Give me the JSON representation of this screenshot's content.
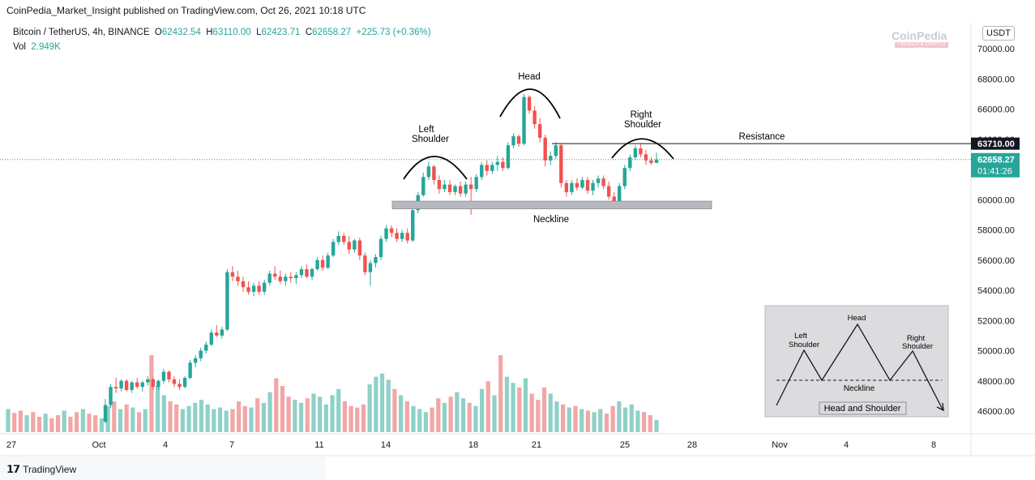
{
  "header": {
    "published": "CoinPedia_Market_Insight published on TradingView.com, Oct 26, 2021 10:18 UTC"
  },
  "symbol": {
    "name": "Bitcoin / TetherUS, 4h, BINANCE",
    "open_label": "O",
    "open": "62432.54",
    "high_label": "H",
    "high": "63110.00",
    "low_label": "L",
    "low": "62423.71",
    "close_label": "C",
    "close": "62658.27",
    "change": "+225.73 (+0.36%)"
  },
  "volume": {
    "label": "Vol",
    "value": "2.949K"
  },
  "currency_button": "USDT",
  "watermark": {
    "name": "CoinPedia",
    "tagline": "FINTECH & CRYPTO MEDIA"
  },
  "footer": {
    "brand": "TradingView"
  },
  "colors": {
    "up": "#26a69a",
    "down": "#ef5350",
    "vol_up": "#8fd1c8",
    "vol_down": "#f2a6a6",
    "dark": "#131722"
  },
  "chart_data": {
    "type": "candlestick",
    "y_axis": {
      "min": 45000,
      "max": 71000,
      "ticks": [
        "70000.00",
        "68000.00",
        "66000.00",
        "64000.00",
        "62000.00",
        "60000.00",
        "58000.00",
        "56000.00",
        "54000.00",
        "52000.00",
        "50000.00",
        "48000.00",
        "46000.00"
      ]
    },
    "x_axis": {
      "ticks": [
        "27",
        "Oct",
        "4",
        "7",
        "11",
        "14",
        "18",
        "21",
        "25",
        "28",
        "Nov",
        "4",
        "8"
      ]
    },
    "price_labels": {
      "resistance": "63710.00",
      "last": "62658.27",
      "countdown": "01:41:26"
    },
    "annotations": {
      "head": "Head",
      "left_shoulder": [
        "Left",
        "Shoulder"
      ],
      "right_shoulder": [
        "Right",
        "Shoulder"
      ],
      "resistance": "Resistance",
      "neckline": "Neckline"
    },
    "inset": {
      "head": "Head",
      "left_shoulder": [
        "Left",
        "Shoulder"
      ],
      "right_shoulder": [
        "Right",
        "Shoulder"
      ],
      "neckline": "Neckline",
      "caption": "Head and Shoulder"
    },
    "resistance_price": 63710,
    "neckline_band": [
      59500,
      59900
    ],
    "candles": [
      [
        45300,
        46800,
        45200,
        46400
      ],
      [
        46400,
        47800,
        46200,
        47600
      ],
      [
        47600,
        48200,
        47200,
        47500
      ],
      [
        47500,
        48100,
        47300,
        48000
      ],
      [
        48000,
        48100,
        47300,
        47400
      ],
      [
        47400,
        48000,
        47200,
        47900
      ],
      [
        47900,
        48200,
        47500,
        47600
      ],
      [
        47600,
        48000,
        47300,
        47900
      ],
      [
        47900,
        48300,
        47700,
        48100
      ],
      [
        48100,
        48200,
        47400,
        47600
      ],
      [
        47600,
        48100,
        47400,
        48000
      ],
      [
        48000,
        48800,
        47800,
        48600
      ],
      [
        48600,
        48700,
        47900,
        48100
      ],
      [
        48100,
        48300,
        47600,
        47800
      ],
      [
        47800,
        48100,
        47400,
        47600
      ],
      [
        47600,
        48300,
        47500,
        48200
      ],
      [
        48200,
        49400,
        48100,
        49200
      ],
      [
        49200,
        49700,
        48900,
        49500
      ],
      [
        49500,
        50200,
        49300,
        50000
      ],
      [
        50000,
        50600,
        49800,
        50400
      ],
      [
        50400,
        51400,
        50300,
        51200
      ],
      [
        51200,
        51700,
        50900,
        51000
      ],
      [
        51000,
        51600,
        50800,
        51400
      ],
      [
        51400,
        55400,
        51300,
        55200
      ],
      [
        55200,
        55600,
        54600,
        54900
      ],
      [
        54900,
        55300,
        54300,
        54600
      ],
      [
        54600,
        54900,
        53900,
        54200
      ],
      [
        54200,
        54600,
        53700,
        53900
      ],
      [
        53900,
        54500,
        53600,
        54300
      ],
      [
        54300,
        54600,
        53700,
        53900
      ],
      [
        53900,
        54700,
        53700,
        54500
      ],
      [
        54500,
        55300,
        54300,
        55100
      ],
      [
        55100,
        55600,
        54700,
        54900
      ],
      [
        54900,
        55300,
        54400,
        54600
      ],
      [
        54600,
        55100,
        54300,
        54900
      ],
      [
        54900,
        55200,
        54500,
        54800
      ],
      [
        54800,
        55200,
        54400,
        55000
      ],
      [
        55000,
        55600,
        54800,
        55400
      ],
      [
        55400,
        55700,
        54800,
        54900
      ],
      [
        54900,
        55500,
        54700,
        55400
      ],
      [
        55400,
        56200,
        55300,
        56000
      ],
      [
        56000,
        56300,
        55300,
        55500
      ],
      [
        55500,
        56500,
        55400,
        56300
      ],
      [
        56300,
        57400,
        56200,
        57200
      ],
      [
        57200,
        57900,
        57000,
        57600
      ],
      [
        57600,
        57800,
        57000,
        57200
      ],
      [
        57200,
        57600,
        56400,
        56700
      ],
      [
        56700,
        57400,
        56500,
        57300
      ],
      [
        57300,
        57500,
        56000,
        56300
      ],
      [
        56300,
        56500,
        55000,
        55200
      ],
      [
        55200,
        56000,
        54300,
        55800
      ],
      [
        55800,
        56400,
        55500,
        56200
      ],
      [
        56200,
        57600,
        56000,
        57400
      ],
      [
        57400,
        58300,
        57200,
        58100
      ],
      [
        58100,
        58300,
        57500,
        57800
      ],
      [
        57800,
        58100,
        57200,
        57400
      ],
      [
        57400,
        58000,
        57200,
        57800
      ],
      [
        57800,
        58100,
        57100,
        57300
      ],
      [
        57300,
        59600,
        57200,
        59300
      ],
      [
        59300,
        60500,
        59100,
        60300
      ],
      [
        60300,
        61800,
        60200,
        61500
      ],
      [
        61500,
        62500,
        61300,
        62200
      ],
      [
        62200,
        62300,
        61000,
        61300
      ],
      [
        61300,
        61600,
        60400,
        60700
      ],
      [
        60700,
        61300,
        60500,
        61000
      ],
      [
        61000,
        61300,
        60300,
        60500
      ],
      [
        60500,
        61000,
        60300,
        60900
      ],
      [
        60900,
        61200,
        60200,
        60400
      ],
      [
        60400,
        61200,
        60200,
        61000
      ],
      [
        61000,
        61500,
        59000,
        60700
      ],
      [
        60700,
        61700,
        60500,
        61500
      ],
      [
        61500,
        62500,
        61300,
        62300
      ],
      [
        62300,
        62600,
        61600,
        61900
      ],
      [
        61900,
        62500,
        61700,
        62300
      ],
      [
        62300,
        62900,
        61900,
        62500
      ],
      [
        62500,
        62800,
        61900,
        62100
      ],
      [
        62100,
        63800,
        62000,
        63600
      ],
      [
        63600,
        64400,
        63400,
        64200
      ],
      [
        64200,
        64300,
        63500,
        63700
      ],
      [
        63700,
        67000,
        63600,
        66800
      ],
      [
        66800,
        66900,
        65700,
        65900
      ],
      [
        65900,
        66200,
        64700,
        65000
      ],
      [
        65000,
        65400,
        63800,
        64100
      ],
      [
        64100,
        64300,
        62200,
        62600
      ],
      [
        62600,
        63200,
        62300,
        62900
      ],
      [
        62900,
        63800,
        62700,
        63600
      ],
      [
        63600,
        63700,
        60800,
        61100
      ],
      [
        61100,
        61300,
        60200,
        60500
      ],
      [
        60500,
        61300,
        60300,
        61100
      ],
      [
        61100,
        61400,
        60600,
        60800
      ],
      [
        60800,
        61500,
        60700,
        61300
      ],
      [
        61300,
        61500,
        60400,
        60600
      ],
      [
        60600,
        61300,
        60300,
        61100
      ],
      [
        61100,
        61600,
        60800,
        61400
      ],
      [
        61400,
        61600,
        60700,
        60900
      ],
      [
        60900,
        61200,
        60000,
        60200
      ],
      [
        60200,
        60500,
        59500,
        59900
      ],
      [
        59900,
        61100,
        59700,
        60900
      ],
      [
        60900,
        62300,
        60700,
        62100
      ],
      [
        62100,
        63000,
        61900,
        62800
      ],
      [
        62800,
        63600,
        62600,
        63400
      ],
      [
        63400,
        63700,
        62800,
        63000
      ],
      [
        63000,
        63300,
        62300,
        62600
      ],
      [
        62600,
        62800,
        62300,
        62432
      ],
      [
        62432,
        63110,
        62424,
        62658
      ]
    ],
    "volume_bars": [
      0.3,
      0.25,
      0.28,
      0.22,
      0.26,
      0.2,
      0.24,
      0.18,
      0.22,
      0.28,
      0.2,
      0.26,
      0.3,
      0.24,
      0.22,
      0.18,
      0.34,
      0.4,
      0.3,
      0.36,
      0.32,
      0.26,
      0.3,
      1.0,
      0.6,
      0.48,
      0.4,
      0.36,
      0.3,
      0.34,
      0.38,
      0.42,
      0.36,
      0.3,
      0.32,
      0.28,
      0.3,
      0.4,
      0.34,
      0.32,
      0.44,
      0.38,
      0.52,
      0.7,
      0.6,
      0.46,
      0.42,
      0.38,
      0.44,
      0.5,
      0.46,
      0.36,
      0.48,
      0.56,
      0.4,
      0.34,
      0.32,
      0.36,
      0.62,
      0.72,
      0.76,
      0.68,
      0.56,
      0.48,
      0.4,
      0.34,
      0.3,
      0.26,
      0.32,
      0.44,
      0.38,
      0.46,
      0.52,
      0.44,
      0.38,
      0.34,
      0.56,
      0.66,
      0.48,
      1.0,
      0.72,
      0.64,
      0.58,
      0.7,
      0.5,
      0.42,
      0.58,
      0.5,
      0.4,
      0.36,
      0.32,
      0.34,
      0.3,
      0.28,
      0.26,
      0.3,
      0.24,
      0.34,
      0.4,
      0.32,
      0.36,
      0.28,
      0.26,
      0.22,
      0.16
    ]
  }
}
